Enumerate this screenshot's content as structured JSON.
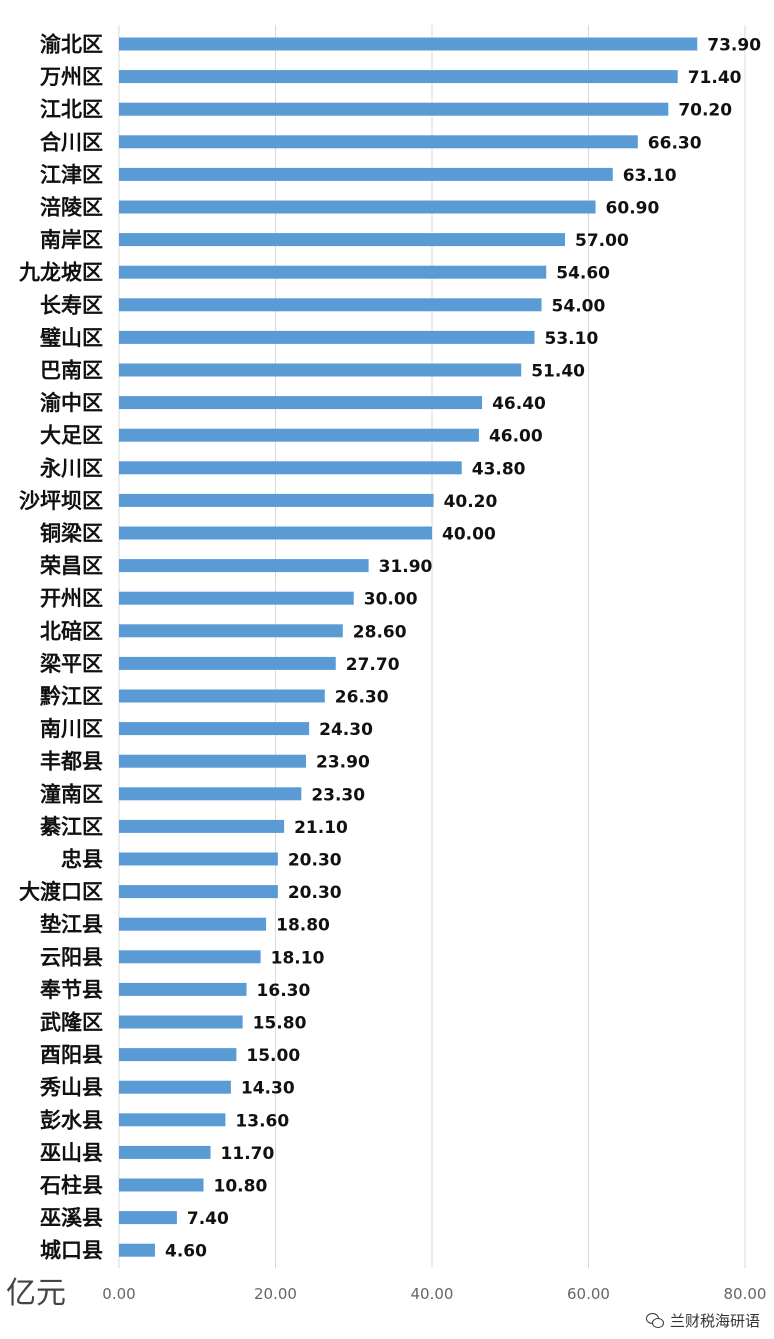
{
  "colors": {
    "bar": "#5b9bd5",
    "grid": "#d9d9d9",
    "text": "#111111",
    "tick": "#666666"
  },
  "unit_label": "亿元",
  "watermark": {
    "icon": "wechat-icon",
    "text": "兰财税海研语"
  },
  "chart_data": {
    "type": "bar",
    "orientation": "horizontal",
    "categories": [
      "渝北区",
      "万州区",
      "江北区",
      "合川区",
      "江津区",
      "涪陵区",
      "南岸区",
      "九龙坡区",
      "长寿区",
      "璧山区",
      "巴南区",
      "渝中区",
      "大足区",
      "永川区",
      "沙坪坝区",
      "铜梁区",
      "荣昌区",
      "开州区",
      "北碚区",
      "梁平区",
      "黔江区",
      "南川区",
      "丰都县",
      "潼南区",
      "綦江区",
      "忠县",
      "大渡口区",
      "垫江县",
      "云阳县",
      "奉节县",
      "武隆区",
      "酉阳县",
      "秀山县",
      "彭水县",
      "巫山县",
      "石柱县",
      "巫溪县",
      "城口县"
    ],
    "values": [
      73.9,
      71.4,
      70.2,
      66.3,
      63.1,
      60.9,
      57.0,
      54.6,
      54.0,
      53.1,
      51.4,
      46.4,
      46.0,
      43.8,
      40.2,
      40.0,
      31.9,
      30.0,
      28.6,
      27.7,
      26.3,
      24.3,
      23.9,
      23.3,
      21.1,
      20.3,
      20.3,
      18.8,
      18.1,
      16.3,
      15.8,
      15.0,
      14.3,
      13.6,
      11.7,
      10.8,
      7.4,
      4.6
    ],
    "value_labels": [
      "73.90",
      "71.40",
      "70.20",
      "66.30",
      "63.10",
      "60.90",
      "57.00",
      "54.60",
      "54.00",
      "53.10",
      "51.40",
      "46.40",
      "46.00",
      "43.80",
      "40.20",
      "40.00",
      "31.90",
      "30.00",
      "28.60",
      "27.70",
      "26.30",
      "24.30",
      "23.90",
      "23.30",
      "21.10",
      "20.30",
      "20.30",
      "18.80",
      "18.10",
      "16.30",
      "15.80",
      "15.00",
      "14.30",
      "13.60",
      "11.70",
      "10.80",
      "7.40",
      "4.60"
    ],
    "x_ticks": [
      "0.00",
      "20.00",
      "40.00",
      "60.00",
      "80.00"
    ],
    "xlim": [
      0,
      80
    ],
    "grid": true,
    "legend": false
  }
}
